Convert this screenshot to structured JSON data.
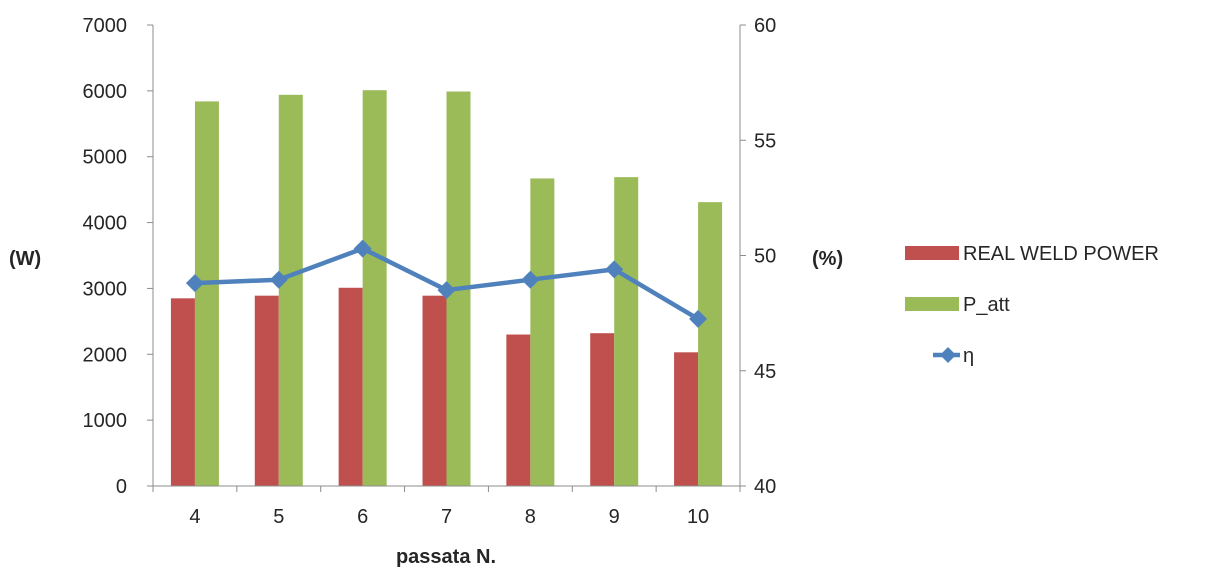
{
  "chart_data": {
    "type": "bar",
    "categories": [
      "4",
      "5",
      "6",
      "7",
      "8",
      "9",
      "10"
    ],
    "series": [
      {
        "name": "REAL WELD POWER",
        "type": "bar",
        "axis": "left",
        "color": "#c0504d",
        "values": [
          2850,
          2890,
          3010,
          2890,
          2300,
          2320,
          2030
        ]
      },
      {
        "name": "P_att",
        "type": "bar",
        "axis": "left",
        "color": "#9bbb59",
        "values": [
          5840,
          5940,
          6010,
          5990,
          4670,
          4690,
          4310
        ]
      },
      {
        "name": "η",
        "type": "line",
        "axis": "right",
        "color": "#4f81bd",
        "marker": "diamond",
        "values": [
          48.8,
          48.95,
          50.3,
          48.5,
          48.95,
          49.4,
          47.25
        ]
      }
    ],
    "xlabel": "passata N.",
    "ylabel": "(W)",
    "y2label": "(%)",
    "ylim": [
      0,
      7000
    ],
    "yticks": [
      "0",
      "1000",
      "2000",
      "3000",
      "4000",
      "5000",
      "6000",
      "7000"
    ],
    "y2lim": [
      40,
      60
    ],
    "y2ticks": [
      "40",
      "45",
      "50",
      "55",
      "60"
    ],
    "grid": false,
    "legend": "right"
  }
}
